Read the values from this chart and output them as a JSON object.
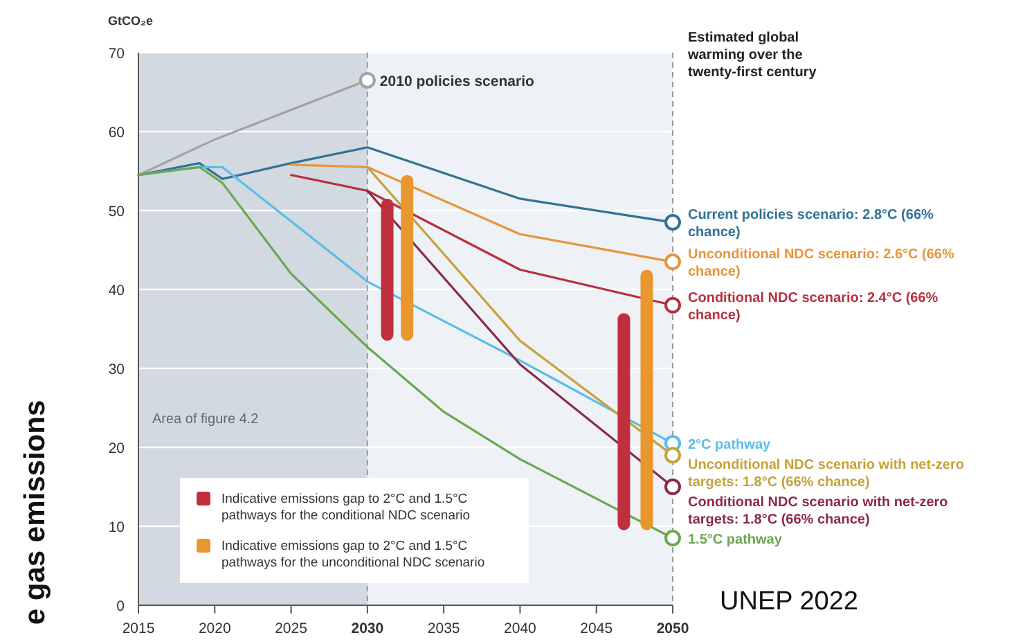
{
  "chart_data": {
    "type": "line",
    "ylabel": "GtCO₂e",
    "legend_title": "Estimated global warming over the twenty-first century",
    "legend": "bottom left",
    "grid": "y",
    "xlim": [
      2015,
      2050
    ],
    "xticks": [
      2015,
      2020,
      2025,
      2030,
      2035,
      2040,
      2045,
      2050
    ],
    "ylim": [
      0,
      70
    ],
    "yticks": [
      0,
      10,
      20,
      30,
      40,
      50,
      60,
      70
    ],
    "bands": [
      {
        "axis": "x",
        "from": 2015,
        "to": 2030,
        "label": "Area of figure 4.2",
        "color": "#d3d9e0"
      }
    ],
    "ref_lines": [
      {
        "axis": "x",
        "value": 2030,
        "line_style": "dashed",
        "color": "#9a9a9a"
      },
      {
        "axis": "x",
        "value": 2050,
        "line_style": "dashed",
        "color": "#9a9a9a"
      }
    ],
    "annotations": [
      "e gas emissions",
      "UNEP 2022"
    ],
    "series": [
      {
        "name": "2010 policies scenario",
        "color": "#a3a3a3",
        "x": [
          2015,
          2020,
          2030
        ],
        "values": [
          54.5,
          59,
          66.5
        ]
      },
      {
        "name": "Current policies scenario: 2.8°C (66% chance)",
        "color": "#2f7397",
        "x": [
          2015,
          2019,
          2020.5,
          2025,
          2030,
          2040,
          2050
        ],
        "values": [
          54.5,
          56,
          54,
          56,
          58,
          51.5,
          48.5
        ]
      },
      {
        "name": "Unconditional NDC scenario: 2.6°C (66% chance)",
        "color": "#e8953a",
        "x": [
          2025,
          2030,
          2040,
          2050
        ],
        "values": [
          55.8,
          55.5,
          47,
          43.5
        ]
      },
      {
        "name": "Conditional NDC scenario: 2.4°C (66% chance)",
        "color": "#b8303f",
        "x": [
          2025,
          2030,
          2040,
          2050
        ],
        "values": [
          54.5,
          52.5,
          42.5,
          38
        ]
      },
      {
        "name": "2°C pathway",
        "color": "#5bbde8",
        "x": [
          2015,
          2019,
          2020.5,
          2030,
          2040,
          2050
        ],
        "values": [
          54.5,
          55.5,
          55.5,
          41,
          31,
          20.5
        ]
      },
      {
        "name": "Unconditional NDC scenario with net-zero targets: 1.8°C (66% chance)",
        "color": "#c4a33a",
        "x": [
          2030,
          2040,
          2050
        ],
        "values": [
          55.5,
          33.5,
          19
        ]
      },
      {
        "name": "Conditional NDC scenario with net-zero targets: 1.8°C (66% chance)",
        "color": "#8a2a48",
        "x": [
          2030,
          2040,
          2050
        ],
        "values": [
          52.5,
          30.5,
          15
        ]
      },
      {
        "name": "1.5°C pathway",
        "color": "#6aa84f",
        "x": [
          2015,
          2019,
          2020.5,
          2025,
          2030,
          2035,
          2040,
          2050
        ],
        "values": [
          54.5,
          55.5,
          53.5,
          42,
          32.7,
          24.5,
          18.5,
          8.5
        ]
      },
      {
        "type": "bar",
        "name": "Indicative emissions gap to 2°C and 1.5°C pathways for the conditional NDC scenario",
        "color": "#c0303c",
        "x": [
          2031.3,
          2046.8
        ],
        "base": [
          33.5,
          9.5
        ],
        "values": [
          18,
          27.5
        ]
      },
      {
        "type": "bar",
        "name": "Indicative emissions gap to 2°C and 1.5°C pathways for the unconditional NDC scenario",
        "color": "#e8962e",
        "x": [
          2032.6,
          2048.3
        ],
        "base": [
          33.5,
          9.5
        ],
        "values": [
          21,
          33
        ]
      }
    ]
  }
}
